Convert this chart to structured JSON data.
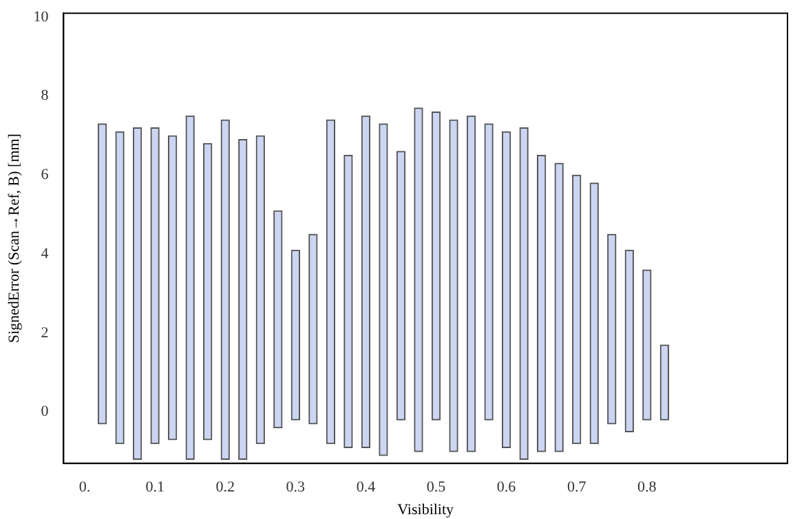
{
  "chart_data": {
    "type": "bar",
    "xlabel": "Visibility",
    "ylabel": "SignedError (Scan→Ref, B) [mm]",
    "x": [
      0.025,
      0.05,
      0.075,
      0.1,
      0.125,
      0.15,
      0.175,
      0.2,
      0.225,
      0.25,
      0.275,
      0.3,
      0.325,
      0.35,
      0.375,
      0.4,
      0.425,
      0.45,
      0.475,
      0.5,
      0.525,
      0.55,
      0.575,
      0.6,
      0.625,
      0.65,
      0.675,
      0.7,
      0.725,
      0.75,
      0.775,
      0.8,
      0.825
    ],
    "base": [
      -0.3,
      -0.8,
      -1.2,
      -0.8,
      -0.7,
      -1.2,
      -0.7,
      -1.2,
      -1.2,
      -0.8,
      -0.4,
      -0.2,
      -0.3,
      -0.8,
      -0.9,
      -0.9,
      -1.1,
      -0.2,
      -1.0,
      -0.2,
      -1.0,
      -1.0,
      -0.2,
      -0.9,
      -1.2,
      -1.0,
      -1.0,
      -0.8,
      -0.8,
      -0.3,
      -0.5,
      -0.2,
      -0.2
    ],
    "values": [
      7.6,
      7.9,
      8.4,
      8.0,
      7.7,
      8.7,
      7.5,
      8.6,
      8.1,
      7.8,
      5.5,
      4.3,
      4.8,
      8.2,
      7.4,
      8.4,
      8.4,
      6.8,
      8.7,
      7.8,
      8.4,
      8.5,
      7.5,
      8.0,
      8.4,
      7.5,
      7.3,
      6.8,
      6.6,
      4.8,
      4.6,
      3.8,
      1.9
    ],
    "color": "#ccd5f2",
    "xlim": [
      -0.03,
      1.0
    ],
    "xticks": [
      {
        "value": 0,
        "label": "0."
      },
      0.1,
      0.2,
      0.3,
      0.4,
      0.5,
      0.6,
      0.7,
      0.8
    ],
    "ylim": [
      -1.3,
      10.1
    ],
    "yticks": [
      0,
      2,
      4,
      6,
      8,
      10
    ],
    "grid": false,
    "legend": false
  }
}
